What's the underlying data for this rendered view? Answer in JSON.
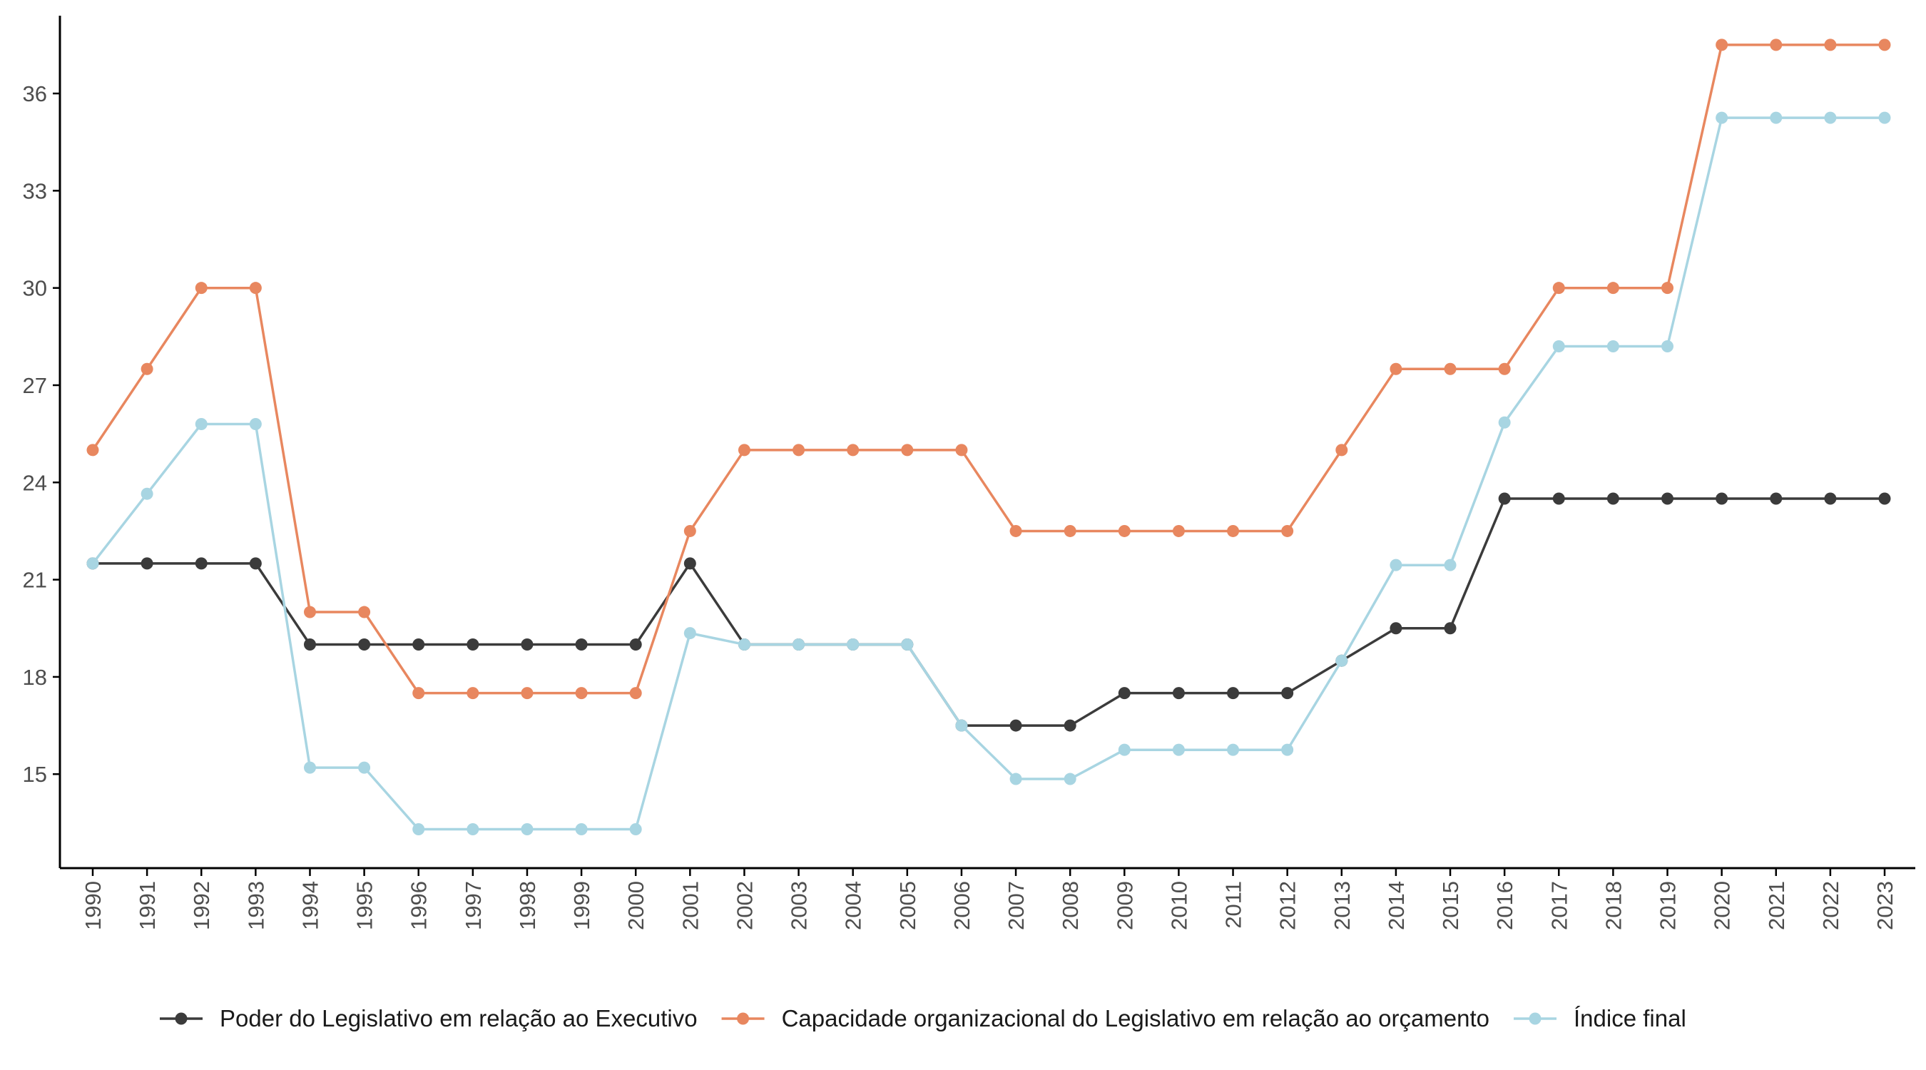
{
  "chart_data": {
    "type": "line",
    "title": "",
    "xlabel": "",
    "ylabel": "",
    "x": [
      1990,
      1991,
      1992,
      1993,
      1994,
      1995,
      1996,
      1997,
      1998,
      1999,
      2000,
      2001,
      2002,
      2003,
      2004,
      2005,
      2006,
      2007,
      2008,
      2009,
      2010,
      2011,
      2012,
      2013,
      2014,
      2015,
      2016,
      2017,
      2018,
      2019,
      2020,
      2021,
      2022,
      2023
    ],
    "yticks": [
      15,
      18,
      21,
      24,
      27,
      30,
      33,
      36
    ],
    "ylim": [
      12.1,
      38.4
    ],
    "grid": false,
    "legend_position": "bottom",
    "series": [
      {
        "name": "Poder do Legislativo em relação ao Executivo",
        "color": "#3b3b3b",
        "values": [
          21.5,
          21.5,
          21.5,
          21.5,
          19,
          19,
          19,
          19,
          19,
          19,
          19,
          21.5,
          19,
          19,
          19,
          19,
          16.5,
          16.5,
          16.5,
          17.5,
          17.5,
          17.5,
          17.5,
          18.5,
          19.5,
          19.5,
          23.5,
          23.5,
          23.5,
          23.5,
          23.5,
          23.5,
          23.5,
          23.5
        ]
      },
      {
        "name": "Capacidade organizacional do Legislativo em relação ao orçamento",
        "color": "#e8875f",
        "values": [
          25,
          27.5,
          30,
          30,
          20,
          20,
          17.5,
          17.5,
          17.5,
          17.5,
          17.5,
          22.5,
          25,
          25,
          25,
          25,
          25,
          22.5,
          22.5,
          22.5,
          22.5,
          22.5,
          22.5,
          25,
          27.5,
          27.5,
          27.5,
          30,
          30,
          30,
          37.5,
          37.5,
          37.5,
          37.5
        ]
      },
      {
        "name": "Índice final",
        "color": "#a8d5e2",
        "values": [
          21.5,
          23.65,
          25.8,
          25.8,
          15.2,
          15.2,
          13.3,
          13.3,
          13.3,
          13.3,
          13.3,
          19.35,
          19,
          19,
          19,
          19,
          16.5,
          14.85,
          14.85,
          15.75,
          15.75,
          15.75,
          15.75,
          18.5,
          21.45,
          21.45,
          25.85,
          28.2,
          28.2,
          28.2,
          35.25,
          35.25,
          35.25,
          35.25
        ]
      }
    ]
  }
}
